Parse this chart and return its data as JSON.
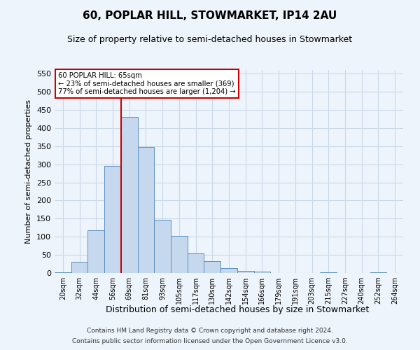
{
  "title": "60, POPLAR HILL, STOWMARKET, IP14 2AU",
  "subtitle": "Size of property relative to semi-detached houses in Stowmarket",
  "xlabel": "Distribution of semi-detached houses by size in Stowmarket",
  "ylabel": "Number of semi-detached properties",
  "footer_line1": "Contains HM Land Registry data © Crown copyright and database right 2024.",
  "footer_line2": "Contains public sector information licensed under the Open Government Licence v3.0.",
  "bar_labels": [
    "20sqm",
    "32sqm",
    "44sqm",
    "56sqm",
    "69sqm",
    "81sqm",
    "93sqm",
    "105sqm",
    "117sqm",
    "130sqm",
    "142sqm",
    "154sqm",
    "166sqm",
    "179sqm",
    "191sqm",
    "203sqm",
    "215sqm",
    "227sqm",
    "240sqm",
    "252sqm",
    "264sqm"
  ],
  "bar_values": [
    2,
    30,
    118,
    295,
    430,
    348,
    147,
    103,
    55,
    33,
    13,
    5,
    4,
    0,
    0,
    0,
    1,
    0,
    0,
    1,
    0
  ],
  "bar_color": "#c5d8ed",
  "bar_edge_color": "#5a8fc0",
  "grid_color": "#c8d8e8",
  "background_color": "#eef4fb",
  "vline_bar_index": 4,
  "vline_color": "#cc0000",
  "annotation_line1": "60 POPLAR HILL: 65sqm",
  "annotation_line2": "← 23% of semi-detached houses are smaller (369)",
  "annotation_line3": "77% of semi-detached houses are larger (1,204) →",
  "annotation_box_color": "#ffffff",
  "annotation_box_edge": "#cc0000",
  "ylim": [
    0,
    560
  ],
  "yticks": [
    0,
    50,
    100,
    150,
    200,
    250,
    300,
    350,
    400,
    450,
    500,
    550
  ]
}
